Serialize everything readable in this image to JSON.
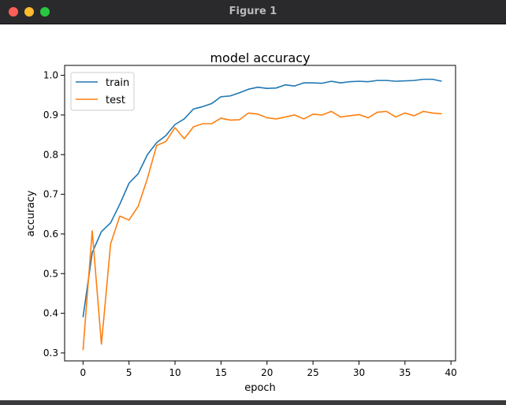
{
  "window": {
    "title": "Figure 1",
    "controls": {
      "close": "close-icon",
      "minimize": "minimize-icon",
      "maximize": "maximize-icon"
    }
  },
  "chart_data": {
    "type": "line",
    "title": "model accuracy",
    "xlabel": "epoch",
    "ylabel": "accuracy",
    "xlim": [
      -2,
      40.5
    ],
    "ylim": [
      0.28,
      1.025
    ],
    "xticks": [
      0,
      5,
      10,
      15,
      20,
      25,
      30,
      35,
      40
    ],
    "xtick_labels": [
      "0",
      "5",
      "10",
      "15",
      "20",
      "25",
      "30",
      "35",
      "40"
    ],
    "yticks": [
      0.3,
      0.4,
      0.5,
      0.6,
      0.7,
      0.8,
      0.9,
      1.0
    ],
    "ytick_labels": [
      "0.3",
      "0.4",
      "0.5",
      "0.6",
      "0.7",
      "0.8",
      "0.9",
      "1.0"
    ],
    "grid": false,
    "legend": "top-left",
    "x": [
      0,
      1,
      2,
      3,
      4,
      5,
      6,
      7,
      8,
      9,
      10,
      11,
      12,
      13,
      14,
      15,
      16,
      17,
      18,
      19,
      20,
      21,
      22,
      23,
      24,
      25,
      26,
      27,
      28,
      29,
      30,
      31,
      32,
      33,
      34,
      35,
      36,
      37,
      38,
      39
    ],
    "series": [
      {
        "name": "train",
        "color": "#1f77b4",
        "values": [
          0.39,
          0.553,
          0.606,
          0.628,
          0.675,
          0.728,
          0.752,
          0.8,
          0.83,
          0.848,
          0.876,
          0.89,
          0.915,
          0.921,
          0.929,
          0.946,
          0.948,
          0.956,
          0.965,
          0.97,
          0.967,
          0.968,
          0.976,
          0.973,
          0.981,
          0.981,
          0.98,
          0.985,
          0.981,
          0.984,
          0.985,
          0.984,
          0.987,
          0.987,
          0.985,
          0.986,
          0.987,
          0.99,
          0.99,
          0.985
        ]
      },
      {
        "name": "test",
        "color": "#ff7f0e",
        "values": [
          0.307,
          0.608,
          0.322,
          0.575,
          0.645,
          0.635,
          0.67,
          0.74,
          0.823,
          0.833,
          0.868,
          0.84,
          0.87,
          0.878,
          0.878,
          0.892,
          0.887,
          0.888,
          0.905,
          0.902,
          0.893,
          0.89,
          0.895,
          0.9,
          0.89,
          0.902,
          0.9,
          0.909,
          0.895,
          0.898,
          0.901,
          0.893,
          0.907,
          0.909,
          0.895,
          0.905,
          0.898,
          0.909,
          0.905,
          0.903
        ]
      }
    ]
  }
}
